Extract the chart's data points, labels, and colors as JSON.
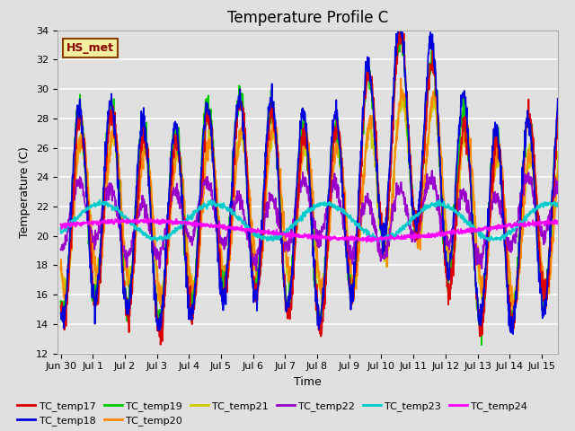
{
  "title": "Temperature Profile C",
  "xlabel": "Time",
  "ylabel": "Temperature (C)",
  "ylim": [
    12,
    34
  ],
  "xlim": [
    -0.1,
    15.5
  ],
  "annotation": "HS_met",
  "series_colors": {
    "TC_temp17": "#dd0000",
    "TC_temp18": "#0000dd",
    "TC_temp19": "#00cc00",
    "TC_temp20": "#ff8800",
    "TC_temp21": "#cccc00",
    "TC_temp22": "#9900cc",
    "TC_temp23": "#00cccc",
    "TC_temp24": "#ff00ff"
  },
  "xtick_labels": [
    "Jun 30",
    "Jul 1",
    "Jul 2",
    "Jul 3",
    "Jul 4",
    "Jul 5",
    "Jul 6",
    "Jul 7",
    "Jul 8",
    "Jul 9",
    "Jul 10",
    "Jul 11",
    "Jul 12",
    "Jul 13",
    "Jul 14",
    "Jul 15"
  ],
  "ytick_values": [
    12,
    14,
    16,
    18,
    20,
    22,
    24,
    26,
    28,
    30,
    32,
    34
  ],
  "plot_bg_color": "#e0e0e0",
  "fig_bg_color": "#e0e0e0",
  "grid_color": "#ffffff",
  "title_fontsize": 12,
  "axis_fontsize": 9,
  "tick_fontsize": 8,
  "lw": 1.3
}
